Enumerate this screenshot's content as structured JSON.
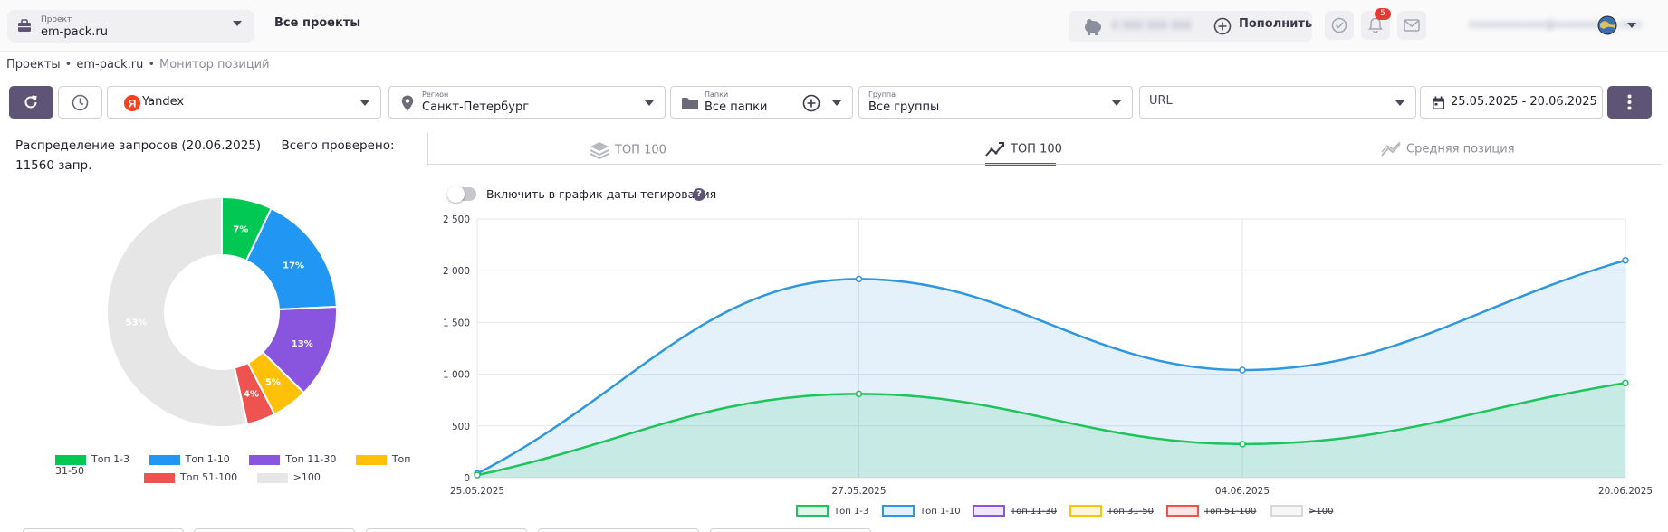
{
  "header": {
    "project_label": "Проект",
    "project_value": "em-pack.ru",
    "all_projects": "Все проекты",
    "balance_blurred": "0 000 000 000",
    "topup_label": "Пополнить",
    "notifications_count": "5",
    "email_blurred": "nnnnnnnnnnn@nnnnnnnnn.nnn"
  },
  "breadcrumb": {
    "items": [
      "Проекты",
      "em-pack.ru",
      "Монитор позиций"
    ]
  },
  "toolbar": {
    "engine": {
      "value": "Yandex"
    },
    "region": {
      "label": "Регион",
      "value": "Санкт-Петербург"
    },
    "folders": {
      "label": "Папки",
      "value": "Все папки"
    },
    "group": {
      "label": "Группа",
      "value": "Все группы"
    },
    "url": {
      "value": "URL"
    },
    "date_range": "25.05.2025 - 20.06.2025"
  },
  "distribution": {
    "title": "Распределение запросов (20.06.2025)",
    "total": "Всего проверено: 11560 запр.",
    "legend": [
      {
        "name": "Топ 1-3",
        "color": "#00c853"
      },
      {
        "name": "Топ 1-10",
        "color": "#2196f3"
      },
      {
        "name": "Топ 11-30",
        "color": "#8a55de"
      },
      {
        "name": "Топ 31-50",
        "color": "#ffc107"
      },
      {
        "name": "Топ 51-100",
        "color": "#ef5350"
      },
      {
        "name": ">100",
        "color": "#e6e6e6"
      }
    ]
  },
  "tabs": [
    {
      "label": "ТОП 100"
    },
    {
      "label": "ТОП 100"
    },
    {
      "label": "Средняя позиция"
    }
  ],
  "toggle_label": "Включить в график даты тегирования",
  "chart_data": [
    {
      "type": "pie",
      "categories": [
        "Топ 1-3",
        "Топ 1-10",
        "Топ 11-30",
        "Топ 31-50",
        "Топ 51-100",
        ">100"
      ],
      "values": [
        7,
        17,
        13,
        5,
        4,
        53
      ],
      "labels": [
        "7%",
        "17%",
        "13%",
        "5%",
        "4%",
        "53%"
      ],
      "colors": [
        "#00c853",
        "#2196f3",
        "#8a55de",
        "#ffc107",
        "#ef5350",
        "#e6e6e6"
      ],
      "donut": true
    },
    {
      "type": "area",
      "x": [
        "25.05.2025",
        "27.05.2025",
        "04.06.2025",
        "20.06.2025"
      ],
      "ylim": [
        0,
        2500
      ],
      "yticks": [
        0,
        500,
        1000,
        1500,
        2000,
        2500
      ],
      "ytick_labels": [
        "0",
        "500",
        "1 000",
        "1 500",
        "2 000",
        "2 500"
      ],
      "grid": true,
      "legend_position": "bottom",
      "series": [
        {
          "name": "Топ 1-10",
          "values": [
            40,
            1920,
            1040,
            2100
          ],
          "color": "#2f96e0",
          "fill": "rgba(47,150,224,0.13)",
          "visible": true
        },
        {
          "name": "Топ 1-3",
          "values": [
            25,
            810,
            325,
            915
          ],
          "color": "#1fc35c",
          "fill": "rgba(31,195,92,0.14)",
          "visible": true
        },
        {
          "name": "Топ 11-30",
          "color": "#8a55de",
          "fill": "rgba(138,85,222,0.15)",
          "visible": false
        },
        {
          "name": "Топ 31-50",
          "color": "#ffc107",
          "fill": "rgba(255,193,7,0.15)",
          "visible": false
        },
        {
          "name": "Топ 51-100",
          "color": "#ef5350",
          "fill": "rgba(239,83,80,0.15)",
          "visible": false
        },
        {
          "name": ">100",
          "color": "#d8d8d8",
          "fill": "rgba(220,220,220,0.25)",
          "visible": false
        }
      ],
      "legend_order": [
        "Топ 1-3",
        "Топ 1-10",
        "Топ 11-30",
        "Топ 31-50",
        "Топ 51-100",
        ">100"
      ]
    }
  ]
}
